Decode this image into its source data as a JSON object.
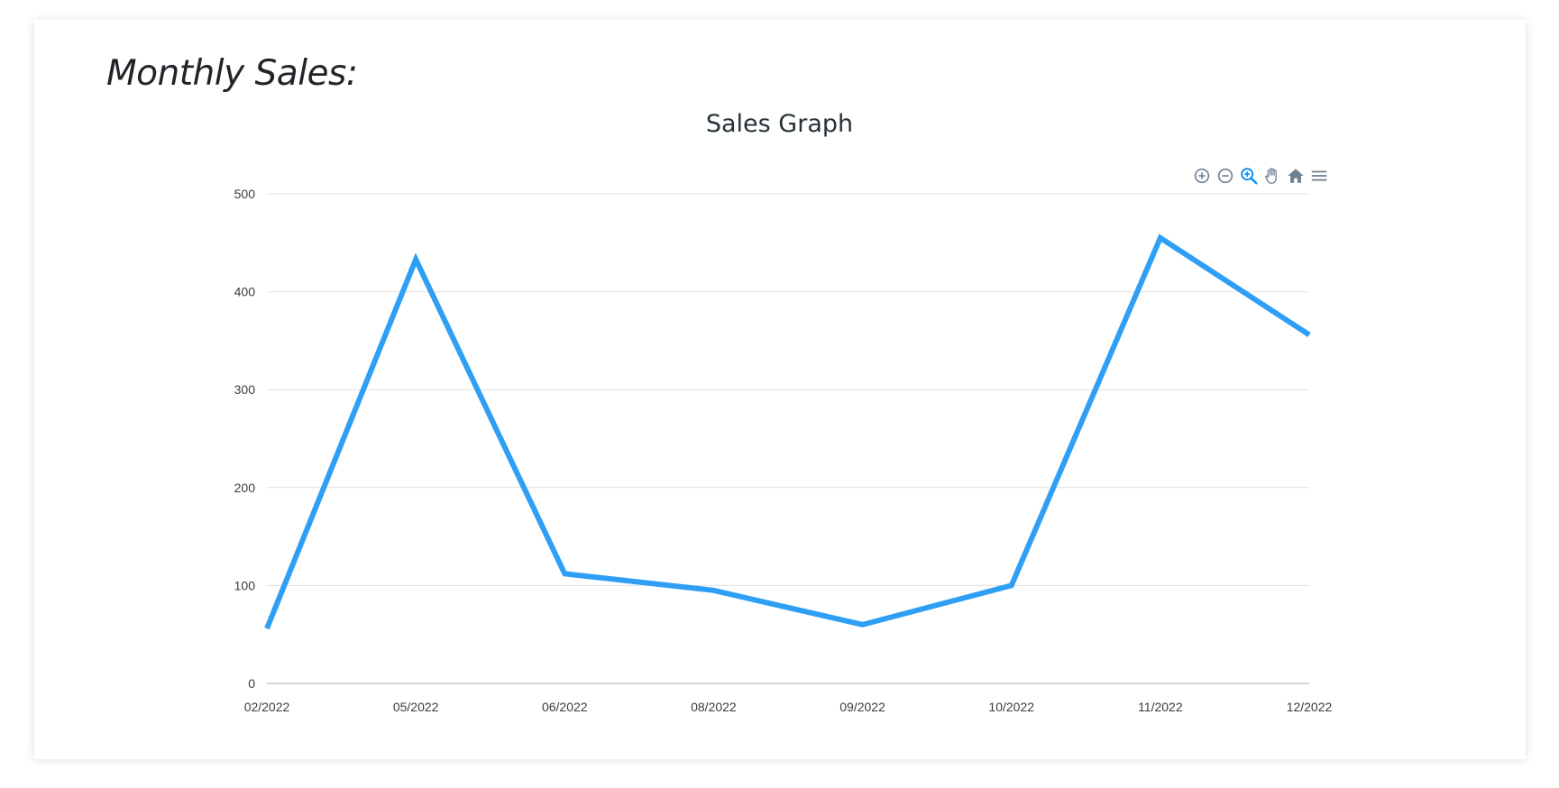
{
  "page": {
    "heading": "Monthly Sales:"
  },
  "toolbar": {
    "icons": [
      "zoom-in-icon",
      "zoom-out-icon",
      "selection-zoom-icon",
      "pan-hand-icon",
      "reset-home-icon",
      "menu-icon"
    ],
    "active_icon": "selection-zoom-icon"
  },
  "colors": {
    "series": "#2e9ff5",
    "grid": "#e0e0e0",
    "icon": "#6e8192",
    "icon_active": "#008ffb"
  },
  "chart_data": {
    "type": "line",
    "title": "Sales Graph",
    "categories": [
      "02/2022",
      "05/2022",
      "06/2022",
      "08/2022",
      "09/2022",
      "10/2022",
      "11/2022",
      "12/2022"
    ],
    "series": [
      {
        "values": [
          56,
          433,
          112,
          95,
          60,
          100,
          455,
          356
        ]
      }
    ],
    "yticks": [
      "0",
      "100",
      "200",
      "300",
      "400",
      "500"
    ],
    "ylim": [
      0,
      500
    ],
    "grid": true,
    "xlabel": "",
    "ylabel": ""
  }
}
